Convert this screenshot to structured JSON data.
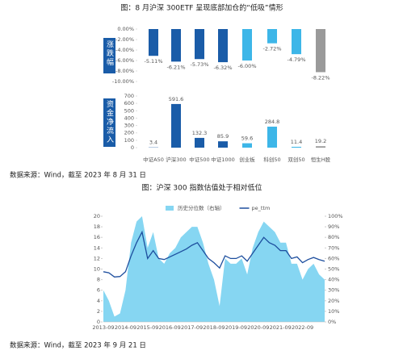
{
  "chart_data": [
    {
      "type": "bar",
      "title": "图：8 月沪深 300ETF 呈现底部加仓的“低吸”情形",
      "label": "涨跌幅",
      "values": [
        -5.11,
        -6.21,
        -5.73,
        -6.32,
        -6.0,
        -2.72,
        -4.79,
        -8.22
      ],
      "value_labels": [
        "-5.11%",
        "-6.21%",
        "-5.73%",
        "-6.32%",
        "-6.00%",
        "-2.72%",
        "-4.79%",
        "-8.22%"
      ],
      "colors": [
        "#1a5ca8",
        "#1a5ca8",
        "#1a5ca8",
        "#1a5ca8",
        "#3db6e8",
        "#3db6e8",
        "#3db6e8",
        "#9a9a9a"
      ],
      "ylim": [
        -10,
        0
      ],
      "yticks": [
        {
          "value": 0,
          "label": "0.00%"
        },
        {
          "value": -2,
          "label": "-2.00%"
        },
        {
          "value": -4,
          "label": "-4.00%"
        },
        {
          "value": -6,
          "label": "-6.00%"
        },
        {
          "value": -8,
          "label": "-8.00%"
        },
        {
          "value": -10,
          "label": "-10.00%"
        }
      ]
    },
    {
      "type": "bar",
      "label": "资金净流入",
      "source": "数据来源：Wind，截至 2023 年 8 月 31 日",
      "categories": [
        "中证A50",
        "沪深300",
        "中证500",
        "中证1000",
        "创业板",
        "科创50",
        "双创50",
        "恒生H股"
      ],
      "values": [
        3.4,
        591.6,
        132.3,
        85.9,
        59.6,
        284.8,
        11.4,
        19.2
      ],
      "colors": [
        "#1a5ca8",
        "#1a5ca8",
        "#1a5ca8",
        "#1a5ca8",
        "#3db6e8",
        "#3db6e8",
        "#3db6e8",
        "#9a9a9a"
      ],
      "ylim": [
        0,
        700
      ],
      "yticks": [
        0,
        100,
        200,
        300,
        400,
        500,
        600,
        700
      ]
    },
    {
      "type": "line",
      "title": "图：沪深 300 指数估值处于相对低位",
      "source": "数据来源：Wind，截至 2023 年 9 月 21 日",
      "x": [
        "2013-09",
        "2013-12",
        "2014-03",
        "2014-06",
        "2014-09",
        "2014-12",
        "2015-03",
        "2015-06",
        "2015-09",
        "2015-12",
        "2016-03",
        "2016-06",
        "2016-09",
        "2016-12",
        "2017-03",
        "2017-06",
        "2017-09",
        "2017-12",
        "2018-03",
        "2018-06",
        "2018-09",
        "2018-12",
        "2019-03",
        "2019-06",
        "2019-09",
        "2019-12",
        "2020-03",
        "2020-06",
        "2020-09",
        "2020-12",
        "2021-03",
        "2021-06",
        "2021-09",
        "2021-12",
        "2022-03",
        "2022-06",
        "2022-09",
        "2022-12",
        "2023-03",
        "2023-06",
        "2023-09"
      ],
      "series": [
        {
          "name": "历史分位数（右轴）",
          "kind": "area",
          "axis": "y2",
          "color": "#86d6f2",
          "values": [
            30,
            20,
            5,
            8,
            30,
            75,
            95,
            100,
            70,
            85,
            60,
            55,
            65,
            70,
            80,
            85,
            90,
            90,
            75,
            55,
            40,
            15,
            60,
            55,
            55,
            60,
            45,
            70,
            85,
            95,
            90,
            85,
            75,
            75,
            55,
            55,
            40,
            50,
            55,
            45,
            40
          ]
        },
        {
          "name": "pe_ttm",
          "kind": "line",
          "color": "#1d4e9e",
          "values": [
            9.5,
            9.3,
            8.5,
            8.6,
            9.5,
            12.5,
            15,
            17,
            12,
            13.5,
            12,
            11.8,
            12.3,
            12.8,
            13.3,
            13.8,
            14.5,
            15,
            13.5,
            12,
            11.2,
            10.2,
            12.5,
            12,
            12,
            12.5,
            11.5,
            13,
            14.5,
            16,
            15,
            14.5,
            13.5,
            13.5,
            12,
            12.3,
            11.2,
            11.8,
            12.2,
            11.8,
            11.5
          ]
        }
      ],
      "ylim": [
        0,
        20
      ],
      "yticks": [
        0,
        2,
        4,
        6,
        8,
        10,
        12,
        14,
        16,
        18,
        20
      ],
      "y2lim": [
        0,
        100
      ],
      "y2ticks": [
        {
          "value": 0,
          "label": "0%"
        },
        {
          "value": 10,
          "label": "10%"
        },
        {
          "value": 20,
          "label": "20%"
        },
        {
          "value": 30,
          "label": "30%"
        },
        {
          "value": 40,
          "label": "40%"
        },
        {
          "value": 50,
          "label": "50%"
        },
        {
          "value": 60,
          "label": "60%"
        },
        {
          "value": 70,
          "label": "70%"
        },
        {
          "value": 80,
          "label": "80%"
        },
        {
          "value": 90,
          "label": "90%"
        },
        {
          "value": 100,
          "label": "100%"
        }
      ],
      "xticks": [
        "2013-09",
        "2014-09",
        "2015-09",
        "2016-09",
        "2017-09",
        "2018-09",
        "2019-09",
        "2020-09",
        "2021-09",
        "2022-09"
      ]
    }
  ]
}
